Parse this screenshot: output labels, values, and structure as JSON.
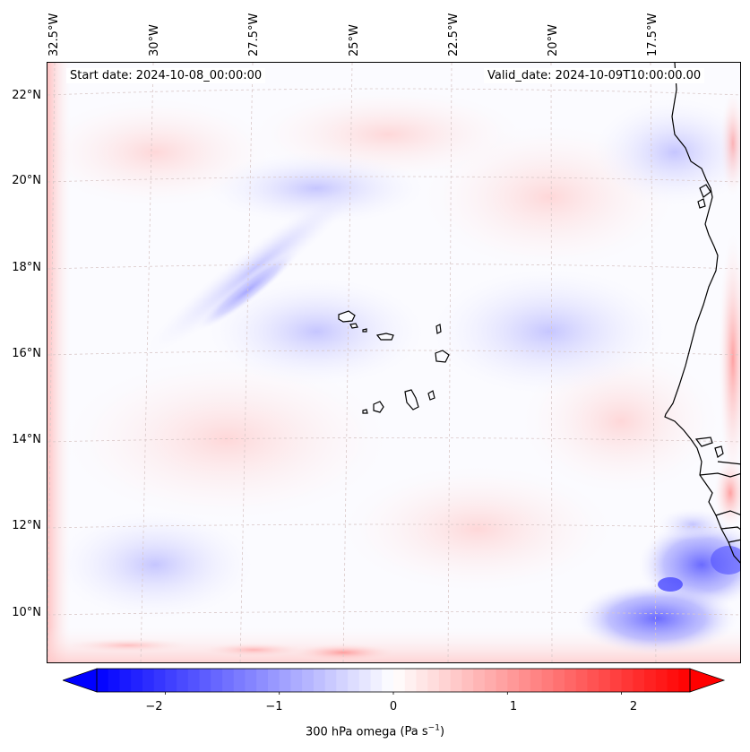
{
  "map": {
    "start_date": "Start date: 2024-10-08_00:00:00",
    "valid_date": "Valid_date: 2024-10-09T10:00:00.00",
    "lon_ticks": [
      "32.5°W",
      "30°W",
      "27.5°W",
      "25°W",
      "22.5°W",
      "20°W",
      "17.5°W"
    ],
    "lat_ticks": [
      "22°N",
      "20°N",
      "18°N",
      "16°N",
      "14°N",
      "12°N",
      "10°N"
    ],
    "variable": "300 hPa omega",
    "units_base": "(Pa s",
    "units_exp": "−1",
    "units_close": ")"
  },
  "colorbar": {
    "ticks": [
      "−2",
      "−1",
      "0",
      "1",
      "2"
    ],
    "range": [
      -2.6,
      2.6
    ],
    "colors": {
      "negative": "#0000ff",
      "zero": "#ffffff",
      "positive": "#ff0000"
    }
  },
  "colors": {
    "coastline": "#000000",
    "gridline": "#d9c8c8",
    "background": "#fbfbff"
  }
}
